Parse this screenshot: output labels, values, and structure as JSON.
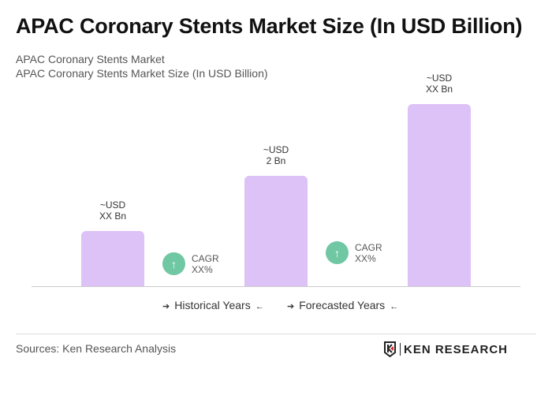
{
  "title": "APAC Coronary Stents Market Size (In USD Billion)",
  "subtitle1": "APAC Coronary Stents Market",
  "subtitle2": "APAC Coronary Stents Market Size (In USD Billion)",
  "chart_data": {
    "type": "bar",
    "values": [
      1,
      2,
      3.3
    ],
    "data_labels": [
      [
        "~USD",
        "XX Bn"
      ],
      [
        "~USD",
        "2 Bn"
      ],
      [
        "~USD",
        "XX Bn"
      ]
    ],
    "bar_color": "#dcc2f7",
    "grid": false,
    "cagr": [
      {
        "label": "CAGR",
        "value": "XX%"
      },
      {
        "label": "CAGR",
        "value": "XX%"
      }
    ],
    "cagr_color": "#6fc7a3",
    "legend": [
      "Historical Years",
      "Forecasted Years"
    ]
  },
  "source": "Sources: Ken Research Analysis",
  "logo_text": "KEN RESEARCH"
}
